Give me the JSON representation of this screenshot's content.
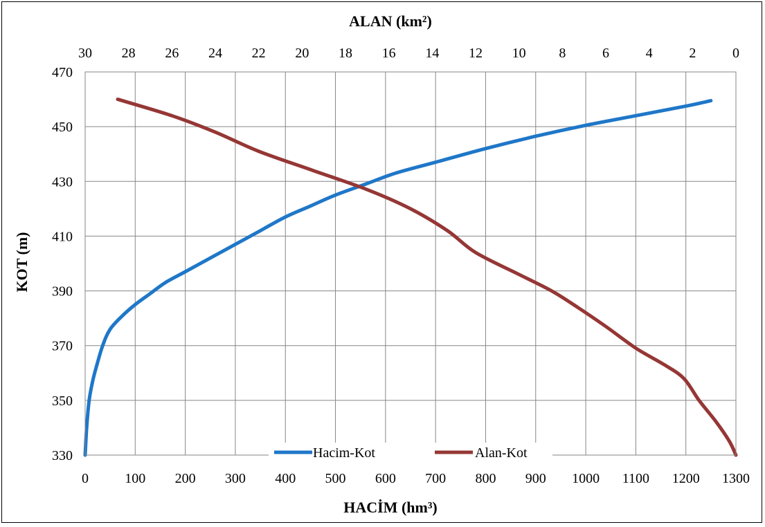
{
  "chart_data": {
    "type": "line",
    "title": "",
    "xlabel": "HACİM (hm³)",
    "x2label": "ALAN (km²)",
    "ylabel": "KOT (m)",
    "xlim": [
      0,
      1300
    ],
    "x2lim": [
      30,
      0
    ],
    "ylim": [
      330,
      470
    ],
    "x_ticks": [
      "0",
      "100",
      "200",
      "300",
      "400",
      "500",
      "600",
      "700",
      "800",
      "900",
      "1000",
      "1100",
      "1200",
      "1300"
    ],
    "x2_ticks": [
      "30",
      "28",
      "26",
      "24",
      "22",
      "20",
      "18",
      "16",
      "14",
      "12",
      "10",
      "8",
      "6",
      "4",
      "2",
      "0"
    ],
    "y_ticks": [
      "330",
      "350",
      "370",
      "390",
      "410",
      "430",
      "450",
      "470"
    ],
    "grid": true,
    "legend_position": "bottom-center",
    "colors": {
      "hacim": "#1F77C8",
      "alan": "#953735"
    },
    "series": [
      {
        "name": "Hacim-Kot",
        "axis": "bottom",
        "x": [
          0,
          3,
          8,
          15,
          22,
          35,
          50,
          75,
          100,
          130,
          160,
          200,
          250,
          300,
          350,
          400,
          450,
          500,
          560,
          620,
          700,
          800,
          900,
          1000,
          1100,
          1200,
          1250
        ],
        "y": [
          330,
          340,
          350,
          357,
          362,
          370,
          376,
          381,
          385,
          389,
          393,
          397,
          402,
          407,
          412,
          417,
          421,
          425,
          429,
          433,
          437,
          442,
          446.5,
          450.5,
          454,
          457.5,
          459.5
        ]
      },
      {
        "name": "Alan-Kot",
        "axis": "top",
        "x": [
          0,
          0.3,
          0.9,
          1.7,
          2.4,
          3.3,
          4.6,
          6.0,
          7.3,
          8.5,
          10.0,
          12.0,
          13.3,
          15.0,
          17.0,
          19.5,
          22.0,
          24.0,
          26.0,
          28.5
        ],
        "y": [
          330,
          335,
          342,
          350,
          358,
          363,
          369,
          377,
          384,
          390,
          396,
          404,
          412,
          420,
          427,
          434,
          441,
          448,
          454,
          460
        ]
      }
    ]
  }
}
